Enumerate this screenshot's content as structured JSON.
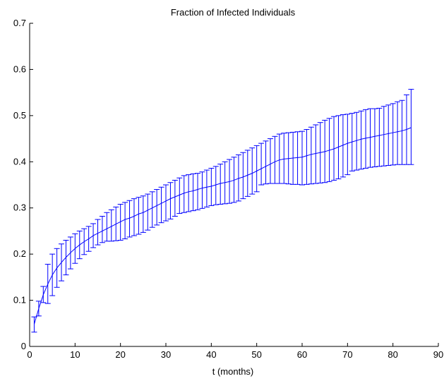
{
  "chart_data": {
    "type": "line",
    "title": "Fraction of Infected Individuals",
    "xlabel": "t (months)",
    "ylabel": "",
    "xlim": [
      0,
      90
    ],
    "ylim": [
      0,
      0.7
    ],
    "xticks": [
      "0",
      "10",
      "20",
      "30",
      "40",
      "50",
      "60",
      "70",
      "80",
      "90"
    ],
    "yticks": [
      "0",
      "0.1",
      "0.2",
      "0.3",
      "0.4",
      "0.5",
      "0.6",
      "0.7"
    ],
    "grid": false,
    "legend": "none",
    "errorbars": true,
    "series_color": "#0000ff",
    "series": [
      {
        "x": [
          1,
          2,
          3,
          4,
          5,
          6,
          7,
          8,
          9,
          10,
          11,
          12,
          13,
          14,
          15,
          16,
          17,
          18,
          19,
          20,
          21,
          22,
          23,
          24,
          25,
          26,
          27,
          28,
          29,
          30,
          31,
          32,
          33,
          34,
          35,
          36,
          37,
          38,
          39,
          40,
          41,
          42,
          43,
          44,
          45,
          46,
          47,
          48,
          49,
          50,
          51,
          52,
          53,
          54,
          55,
          56,
          57,
          58,
          59,
          60,
          61,
          62,
          63,
          64,
          65,
          66,
          67,
          68,
          69,
          70,
          71,
          72,
          73,
          74,
          75,
          76,
          77,
          78,
          79,
          80,
          81,
          82,
          83,
          84
        ],
        "y": [
          0.048,
          0.082,
          0.112,
          0.135,
          0.155,
          0.17,
          0.182,
          0.193,
          0.203,
          0.212,
          0.22,
          0.227,
          0.233,
          0.24,
          0.245,
          0.25,
          0.255,
          0.26,
          0.265,
          0.27,
          0.275,
          0.278,
          0.282,
          0.287,
          0.29,
          0.295,
          0.3,
          0.305,
          0.31,
          0.315,
          0.32,
          0.324,
          0.328,
          0.332,
          0.335,
          0.337,
          0.34,
          0.343,
          0.345,
          0.347,
          0.35,
          0.353,
          0.355,
          0.357,
          0.36,
          0.364,
          0.367,
          0.371,
          0.375,
          0.38,
          0.385,
          0.39,
          0.395,
          0.4,
          0.404,
          0.406,
          0.407,
          0.408,
          0.409,
          0.41,
          0.413,
          0.416,
          0.418,
          0.42,
          0.422,
          0.425,
          0.428,
          0.432,
          0.436,
          0.44,
          0.443,
          0.446,
          0.449,
          0.451,
          0.453,
          0.455,
          0.457,
          0.459,
          0.461,
          0.463,
          0.465,
          0.467,
          0.47,
          0.474
        ],
        "upper": [
          0.064,
          0.098,
          0.13,
          0.178,
          0.2,
          0.212,
          0.222,
          0.23,
          0.237,
          0.244,
          0.25,
          0.255,
          0.26,
          0.266,
          0.275,
          0.282,
          0.29,
          0.296,
          0.302,
          0.308,
          0.312,
          0.316,
          0.32,
          0.323,
          0.326,
          0.33,
          0.335,
          0.34,
          0.345,
          0.35,
          0.355,
          0.36,
          0.365,
          0.37,
          0.372,
          0.374,
          0.375,
          0.378,
          0.382,
          0.386,
          0.39,
          0.395,
          0.4,
          0.405,
          0.41,
          0.415,
          0.42,
          0.425,
          0.43,
          0.435,
          0.44,
          0.445,
          0.45,
          0.455,
          0.46,
          0.462,
          0.463,
          0.464,
          0.465,
          0.466,
          0.47,
          0.475,
          0.48,
          0.485,
          0.49,
          0.494,
          0.498,
          0.5,
          0.502,
          0.503,
          0.505,
          0.507,
          0.51,
          0.513,
          0.515,
          0.515,
          0.516,
          0.52,
          0.523,
          0.526,
          0.53,
          0.533,
          0.545,
          0.557
        ],
        "lower": [
          0.031,
          0.066,
          0.095,
          0.093,
          0.11,
          0.128,
          0.142,
          0.155,
          0.168,
          0.18,
          0.19,
          0.199,
          0.206,
          0.214,
          0.22,
          0.225,
          0.228,
          0.228,
          0.229,
          0.23,
          0.233,
          0.237,
          0.24,
          0.243,
          0.247,
          0.252,
          0.258,
          0.263,
          0.268,
          0.272,
          0.276,
          0.282,
          0.288,
          0.29,
          0.292,
          0.294,
          0.296,
          0.299,
          0.302,
          0.305,
          0.307,
          0.308,
          0.309,
          0.31,
          0.312,
          0.315,
          0.32,
          0.325,
          0.33,
          0.335,
          0.35,
          0.352,
          0.353,
          0.353,
          0.353,
          0.353,
          0.352,
          0.351,
          0.351,
          0.35,
          0.351,
          0.352,
          0.353,
          0.354,
          0.355,
          0.357,
          0.36,
          0.363,
          0.367,
          0.372,
          0.38,
          0.382,
          0.384,
          0.386,
          0.388,
          0.389,
          0.39,
          0.391,
          0.392,
          0.393,
          0.394,
          0.394,
          0.394,
          0.394
        ]
      }
    ]
  }
}
